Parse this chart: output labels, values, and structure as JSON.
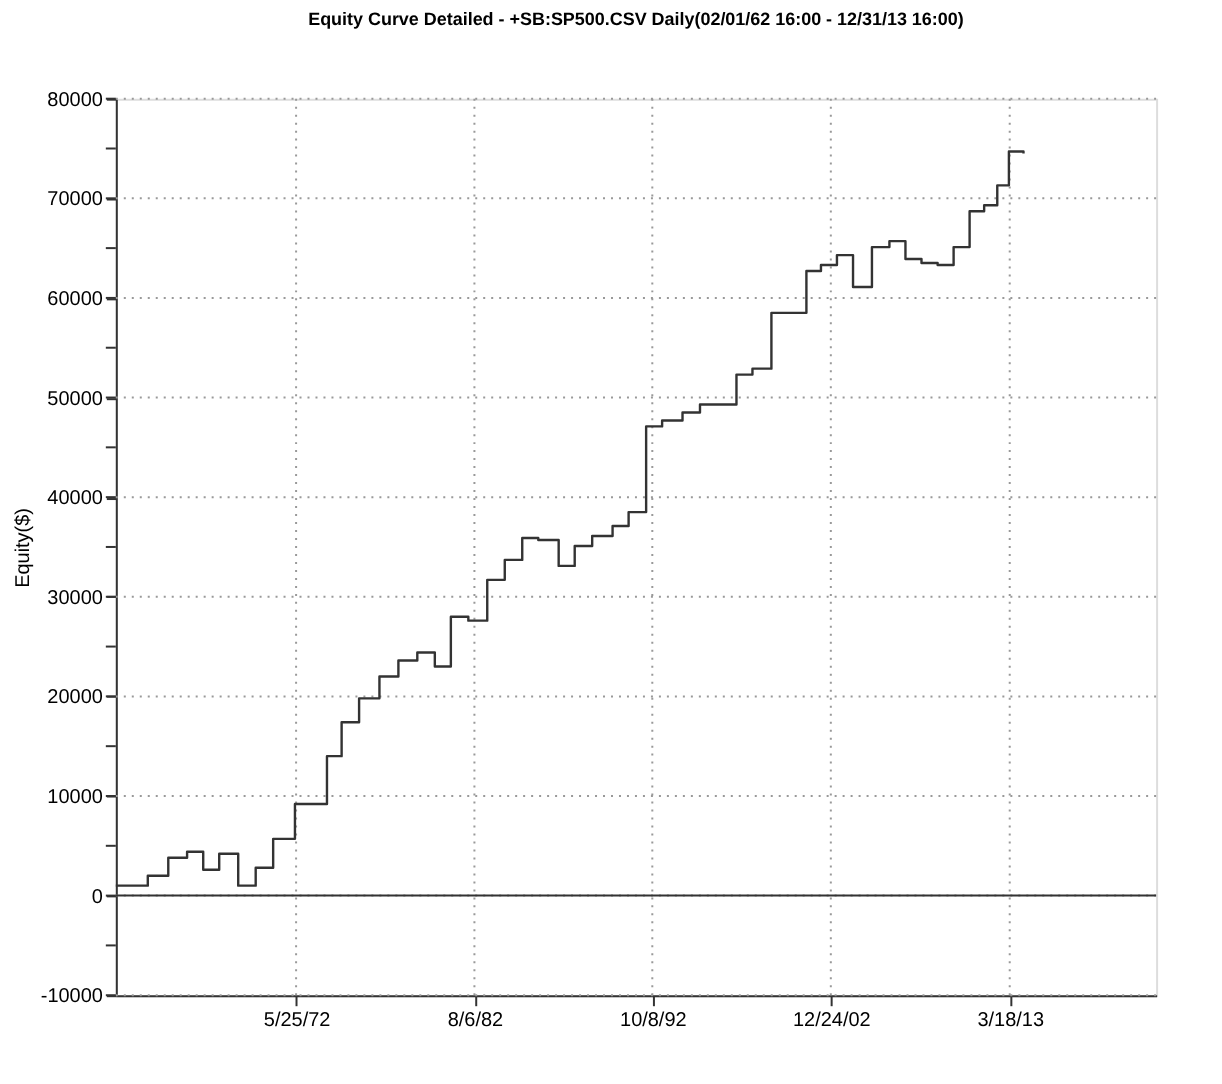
{
  "chart_data": {
    "type": "step",
    "title": "Equity Curve Detailed - +SB:SP500.CSV Daily(02/01/62 16:00 - 12/31/13 16:00)",
    "ylabel": "Equity($)",
    "x": [
      "1962-02",
      "1963-01",
      "1963-12",
      "1965-02",
      "1966-03",
      "1967-02",
      "1968-01",
      "1969-02",
      "1970-02",
      "1971-02",
      "1972-05",
      "1974-03",
      "1975-01",
      "1976-01",
      "1977-03",
      "1978-04",
      "1979-05",
      "1980-05",
      "1981-04",
      "1982-04",
      "1983-05",
      "1984-05",
      "1985-05",
      "1986-04",
      "1987-06",
      "1988-05",
      "1989-05",
      "1990-07",
      "1991-06",
      "1992-06",
      "1993-05",
      "1994-07",
      "1995-07",
      "1996-07",
      "1997-08",
      "1998-07",
      "1999-08",
      "2000-07",
      "2001-08",
      "2002-06",
      "2003-05",
      "2004-04",
      "2005-05",
      "2006-05",
      "2007-04",
      "2008-03",
      "2009-02",
      "2010-01",
      "2010-12",
      "2011-10",
      "2012-07",
      "2013-03",
      "2013-12-31"
    ],
    "series": [
      {
        "color": "#333333",
        "values": [
          1000,
          1000,
          2000,
          3800,
          4400,
          2600,
          4200,
          1000,
          2800,
          5700,
          9200,
          14000,
          17400,
          19800,
          22000,
          23600,
          24400,
          23000,
          28000,
          27600,
          31700,
          33700,
          35900,
          35700,
          33100,
          35100,
          36100,
          37100,
          38500,
          47100,
          47700,
          48500,
          49300,
          49300,
          52300,
          52900,
          58500,
          58500,
          62700,
          63300,
          64300,
          61100,
          65100,
          65700,
          63900,
          63500,
          63300,
          65100,
          68700,
          69300,
          71300,
          74700,
          74500
        ]
      }
    ],
    "xlim": [
      "1962-02-01",
      "2021-08-01"
    ],
    "xticks": [
      {
        "value": "1972-05-25",
        "label": "5/25/72"
      },
      {
        "value": "1982-08-06",
        "label": "8/6/82"
      },
      {
        "value": "1992-10-08",
        "label": "10/8/92"
      },
      {
        "value": "2002-12-24",
        "label": "12/24/02"
      },
      {
        "value": "2013-03-18",
        "label": "3/18/13"
      }
    ],
    "ylim": [
      -10000,
      80000
    ],
    "yticks": [
      -10000,
      {
        "value": -5000,
        "label": null
      },
      0,
      {
        "value": 5000,
        "label": null
      },
      10000,
      {
        "value": 15000,
        "label": null
      },
      20000,
      {
        "value": 25000,
        "label": null
      },
      30000,
      {
        "value": 35000,
        "label": null
      },
      40000,
      {
        "value": 45000,
        "label": null
      },
      50000,
      {
        "value": 55000,
        "label": null
      },
      60000,
      {
        "value": 65000,
        "label": null
      },
      70000,
      {
        "value": 75000,
        "label": null
      },
      80000
    ],
    "ref_lines": [
      {
        "axis": "y",
        "value": 0,
        "color": "#333333",
        "line_style": "solid"
      }
    ],
    "grid": true,
    "marker": "none",
    "line_style": "solid"
  }
}
